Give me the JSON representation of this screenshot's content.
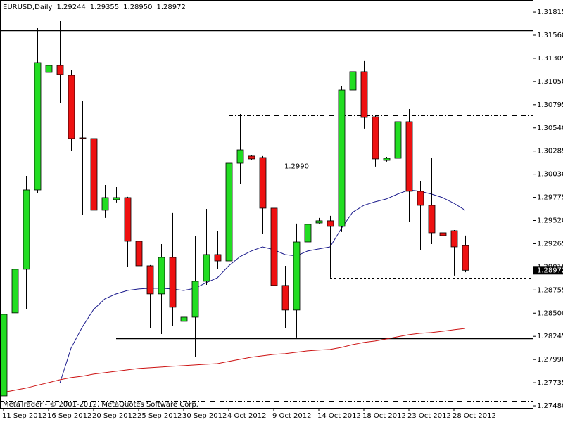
{
  "chart_data": {
    "type": "candlestick",
    "header": {
      "symbol": "EURUSD,Daily",
      "values": [
        1.29244,
        1.29355,
        1.2895,
        1.28972
      ],
      "value_labels": [
        "1.29244",
        "1.29355",
        "1.28950",
        "1.28972"
      ]
    },
    "watermark": "MetaTrader - © 2001-2012, MetaQuotes Software Corp.",
    "categories": [
      "11 Sep 2012",
      null,
      null,
      null,
      "16 Sep 2012",
      null,
      null,
      null,
      "20 Sep 2012",
      null,
      null,
      null,
      "25 Sep 2012",
      null,
      null,
      null,
      "30 Sep 2012",
      null,
      null,
      null,
      "4 Oct 2012",
      null,
      null,
      null,
      "9 Oct 2012",
      null,
      null,
      null,
      "14 Oct 2012",
      null,
      null,
      null,
      "18 Oct 2012",
      null,
      null,
      null,
      "23 Oct 2012",
      null,
      null,
      null,
      "28 Oct 2012",
      null
    ],
    "open": [
      1.27589,
      1.28503,
      1.28983,
      1.29857,
      1.3115,
      1.31227,
      1.31119,
      1.3043,
      1.30422,
      1.29633,
      1.29749,
      1.29772,
      1.29292,
      1.29021,
      1.28712,
      1.29114,
      1.2841,
      1.28456,
      1.28851,
      1.29145,
      1.29075,
      1.30151,
      1.30229,
      1.30213,
      1.29656,
      1.28805,
      1.28534,
      1.29284,
      1.29493,
      1.29517,
      1.29455,
      1.30956,
      1.31158,
      1.30662,
      1.30182,
      1.30205,
      1.30608,
      1.29842,
      1.29687,
      1.29385,
      1.29408,
      1.29244
    ],
    "high": [
      1.28541,
      1.29161,
      1.30012,
      1.31637,
      1.31305,
      1.31715,
      1.31173,
      1.3084,
      1.30476,
      1.29911,
      1.29888,
      1.2978,
      1.293,
      1.29029,
      1.29261,
      1.29602,
      1.28464,
      1.29354,
      1.29648,
      1.29408,
      1.30298,
      1.30693,
      1.30244,
      1.30229,
      1.29888,
      1.29021,
      1.29486,
      1.29904,
      1.29548,
      1.29571,
      1.31003,
      1.3139,
      1.31274,
      1.3067,
      1.30221,
      1.30809,
      1.30747,
      1.2995,
      1.30205,
      1.29548,
      1.29416,
      1.29355
    ],
    "low": [
      1.27551,
      1.28139,
      1.28541,
      1.29818,
      1.31134,
      1.30809,
      1.30283,
      1.29586,
      1.29176,
      1.29548,
      1.29718,
      1.29006,
      1.2889,
      1.28332,
      1.2827,
      1.28363,
      1.28394,
      1.28015,
      1.28812,
      1.28983,
      1.2906,
      1.29919,
      1.30182,
      1.29377,
      1.28565,
      1.28332,
      1.28232,
      1.29277,
      1.29486,
      1.2889,
      1.29393,
      1.30941,
      1.30531,
      1.30113,
      1.30167,
      1.30151,
      1.29501,
      1.29192,
      1.29261,
      1.28812,
      1.28913,
      1.2895
    ],
    "close": [
      1.28487,
      1.28983,
      1.29857,
      1.31258,
      1.31227,
      1.31127,
      1.30422,
      1.30422,
      1.29633,
      1.29772,
      1.29772,
      1.29292,
      1.29021,
      1.28712,
      1.29114,
      1.28565,
      1.28456,
      1.28851,
      1.29145,
      1.29075,
      1.30151,
      1.30298,
      1.30198,
      1.29656,
      1.28805,
      1.28534,
      1.29284,
      1.29478,
      1.29517,
      1.29455,
      1.30956,
      1.31158,
      1.30654,
      1.30198,
      1.30205,
      1.30608,
      1.29842,
      1.29687,
      1.29385,
      1.29354,
      1.2923,
      1.28972
    ],
    "up_color": "#22dd22",
    "down_color": "#ee1111",
    "moving_averages": [
      {
        "color": "#1a1a8c",
        "values": [
          null,
          null,
          null,
          null,
          null,
          1.27729,
          1.28116,
          1.28348,
          1.28541,
          1.28658,
          1.28712,
          1.2875,
          1.28766,
          1.28774,
          1.28774,
          1.28766,
          1.2875,
          1.28774,
          1.28836,
          1.2889,
          1.29021,
          1.29122,
          1.29184,
          1.2923,
          1.29199,
          1.29145,
          1.2913,
          1.29184,
          1.29207,
          1.2923,
          1.29432,
          1.2961,
          1.29687,
          1.29726,
          1.29757,
          1.29811,
          1.29857,
          1.29842,
          1.29811,
          1.29772,
          1.2971,
          1.29633
        ]
      },
      {
        "color": "#cc1111",
        "values": [
          1.27628,
          1.27651,
          1.27675,
          1.27706,
          1.27736,
          1.27767,
          1.27791,
          1.27806,
          1.27829,
          1.27845,
          1.2786,
          1.27876,
          1.27891,
          1.27899,
          1.27907,
          1.27915,
          1.27922,
          1.2793,
          1.27938,
          1.27945,
          1.27969,
          1.27992,
          1.28015,
          1.28031,
          1.28046,
          1.28054,
          1.28069,
          1.28085,
          1.28093,
          1.281,
          1.28123,
          1.28154,
          1.28178,
          1.28193,
          1.28216,
          1.2824,
          1.28263,
          1.28278,
          1.28286,
          1.28301,
          1.28317,
          1.28332
        ]
      }
    ],
    "levels": [
      {
        "value": 1.31614,
        "start": 0,
        "style": "solid"
      },
      {
        "value": 1.28224,
        "start": 10,
        "style": "solid"
      },
      {
        "value": 1.30678,
        "start": 20,
        "style": "dashdot"
      },
      {
        "value": 1.30167,
        "start": 32,
        "style": "dashed"
      },
      {
        "value": 1.299,
        "label": "1.2990",
        "start": 24,
        "style": "dashed"
      },
      {
        "value": 1.2889,
        "start": 29,
        "style": "dashed"
      },
      {
        "value": 1.27535,
        "start": 0,
        "style": "dashdot"
      }
    ],
    "ylim": [
      1.27457,
      1.31947
    ],
    "yticks": [
      1.31815,
      {
        "value": 1.3156,
        "label": "1.31560"
      },
      1.31305,
      {
        "value": 1.3105,
        "label": "1.31050"
      },
      1.30795,
      {
        "value": 1.3054,
        "label": "1.30540"
      },
      1.30285,
      {
        "value": 1.3003,
        "label": "1.30030"
      },
      1.29775,
      {
        "value": 1.2952,
        "label": "1.29520"
      },
      1.29265,
      {
        "value": 1.2901,
        "label": "1.29010"
      },
      1.28755,
      {
        "value": 1.285,
        "label": "1.28500"
      },
      1.28245,
      {
        "value": 1.2799,
        "label": "1.27990"
      },
      1.27735,
      {
        "value": 1.2748,
        "label": "1.27480"
      }
    ]
  }
}
